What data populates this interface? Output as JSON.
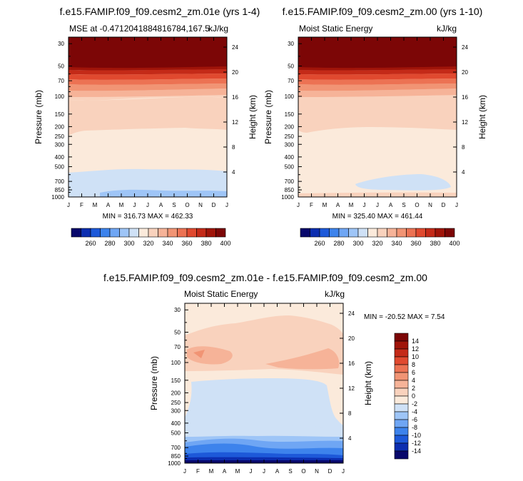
{
  "chart_data": [
    {
      "type": "heatmap",
      "title": "f.e15.FAMIP.f09_f09.cesm2_zm.01e (yrs 1-4)",
      "subtitle_left": "MSE at -0.4712041884816784,167.5",
      "subtitle_right": "kJ/kg",
      "ylabel": "Pressure (mb)",
      "ylabel_right": "Height (km)",
      "x": [
        "J",
        "F",
        "M",
        "A",
        "M",
        "J",
        "J",
        "A",
        "S",
        "O",
        "N",
        "D",
        "J"
      ],
      "y_pressure_ticks": [
        "30",
        "50",
        "70",
        "100",
        "150",
        "200",
        "250",
        "300",
        "400",
        "500",
        "700",
        "850",
        "1000"
      ],
      "y_height_ticks": [
        "24",
        "20",
        "16",
        "12",
        "8",
        "4"
      ],
      "stats": "MIN = 316.73 MAX = 462.33",
      "min": 316.73,
      "max": 462.33
    },
    {
      "type": "heatmap",
      "title": "f.e15.FAMIP.f09_f09.cesm2_zm.00 (yrs 1-10)",
      "subtitle_left": "Moist Static Energy",
      "subtitle_right": "kJ/kg",
      "ylabel": "Pressure (mb)",
      "ylabel_right": "Height (km)",
      "x": [
        "J",
        "F",
        "M",
        "A",
        "M",
        "J",
        "J",
        "A",
        "S",
        "O",
        "N",
        "D",
        "J"
      ],
      "y_pressure_ticks": [
        "30",
        "50",
        "70",
        "100",
        "150",
        "200",
        "250",
        "300",
        "400",
        "500",
        "700",
        "850",
        "1000"
      ],
      "y_height_ticks": [
        "24",
        "20",
        "16",
        "12",
        "8",
        "4"
      ],
      "stats": "MIN = 325.40 MAX = 461.44",
      "min": 325.4,
      "max": 461.44
    },
    {
      "type": "heatmap",
      "title": "f.e15.FAMIP.f09_f09.cesm2_zm.01e - f.e15.FAMIP.f09_f09.cesm2_zm.00",
      "subtitle_left": "Moist Static Energy",
      "subtitle_right": "kJ/kg",
      "ylabel": "Pressure (mb)",
      "ylabel_right": "Height (km)",
      "x": [
        "J",
        "F",
        "M",
        "A",
        "M",
        "J",
        "J",
        "A",
        "S",
        "O",
        "N",
        "D",
        "J"
      ],
      "y_pressure_ticks": [
        "30",
        "50",
        "70",
        "100",
        "150",
        "200",
        "250",
        "300",
        "400",
        "500",
        "700",
        "850",
        "1000"
      ],
      "y_height_ticks": [
        "24",
        "20",
        "16",
        "12",
        "8",
        "4"
      ],
      "stats": "MIN = -20.52 MAX =  7.54",
      "min": -20.52,
      "max": 7.54
    }
  ],
  "colorbar_top": {
    "labels": [
      "260",
      "280",
      "300",
      "320",
      "340",
      "360",
      "380",
      "400"
    ],
    "colors": [
      "#08086b",
      "#0c2eb0",
      "#1d59d9",
      "#3d83ec",
      "#6fa6f4",
      "#9ec5f7",
      "#cfe1f6",
      "#fbeadb",
      "#f9d2bd",
      "#f6b398",
      "#f19474",
      "#ec7253",
      "#e0492f",
      "#c42a18",
      "#a01409",
      "#7c0606"
    ]
  },
  "colorbar_diff": {
    "labels": [
      "14",
      "12",
      "10",
      "8",
      "6",
      "4",
      "2",
      "0",
      "-2",
      "-4",
      "-6",
      "-8",
      "-10",
      "-12",
      "-14"
    ],
    "colors": [
      "#7c0606",
      "#a01409",
      "#c42a18",
      "#e0492f",
      "#ec7253",
      "#f19474",
      "#f6b398",
      "#f9d2bd",
      "#fbeadb",
      "#cfe1f6",
      "#9ec5f7",
      "#6fa6f4",
      "#3d83ec",
      "#1d59d9",
      "#0c2eb0",
      "#08086b"
    ]
  }
}
